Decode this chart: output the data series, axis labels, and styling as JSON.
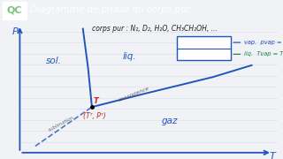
{
  "title": "Diagramme de phase du corps pur",
  "title_bg": "#7bc67e",
  "qc_label": "QC",
  "bg_color": "#f0f2f5",
  "line_color": "#2255bb",
  "xlabel": "T",
  "ylabel": "P",
  "corps_purs_text": "corps pur : N₂, D₂, H₂O, CH₃CH₂OH, ...",
  "sol_label": "sol.",
  "liq_label": "liq.",
  "gas_label": "gaz",
  "triple_label": "(Tᵀ, Pᵀ)",
  "triple_T": "T",
  "text_color_blue": "#2255bb",
  "text_color_red": "#cc2222",
  "text_color_green": "#228844",
  "legend_text1": "vap.  pvap = pliq",
  "legend_text2": "liq.  Tvap = Tliq",
  "coexist_label": "coexistence",
  "sublim_label": "sublimation",
  "notebook_line_color": "#c8d0e0"
}
